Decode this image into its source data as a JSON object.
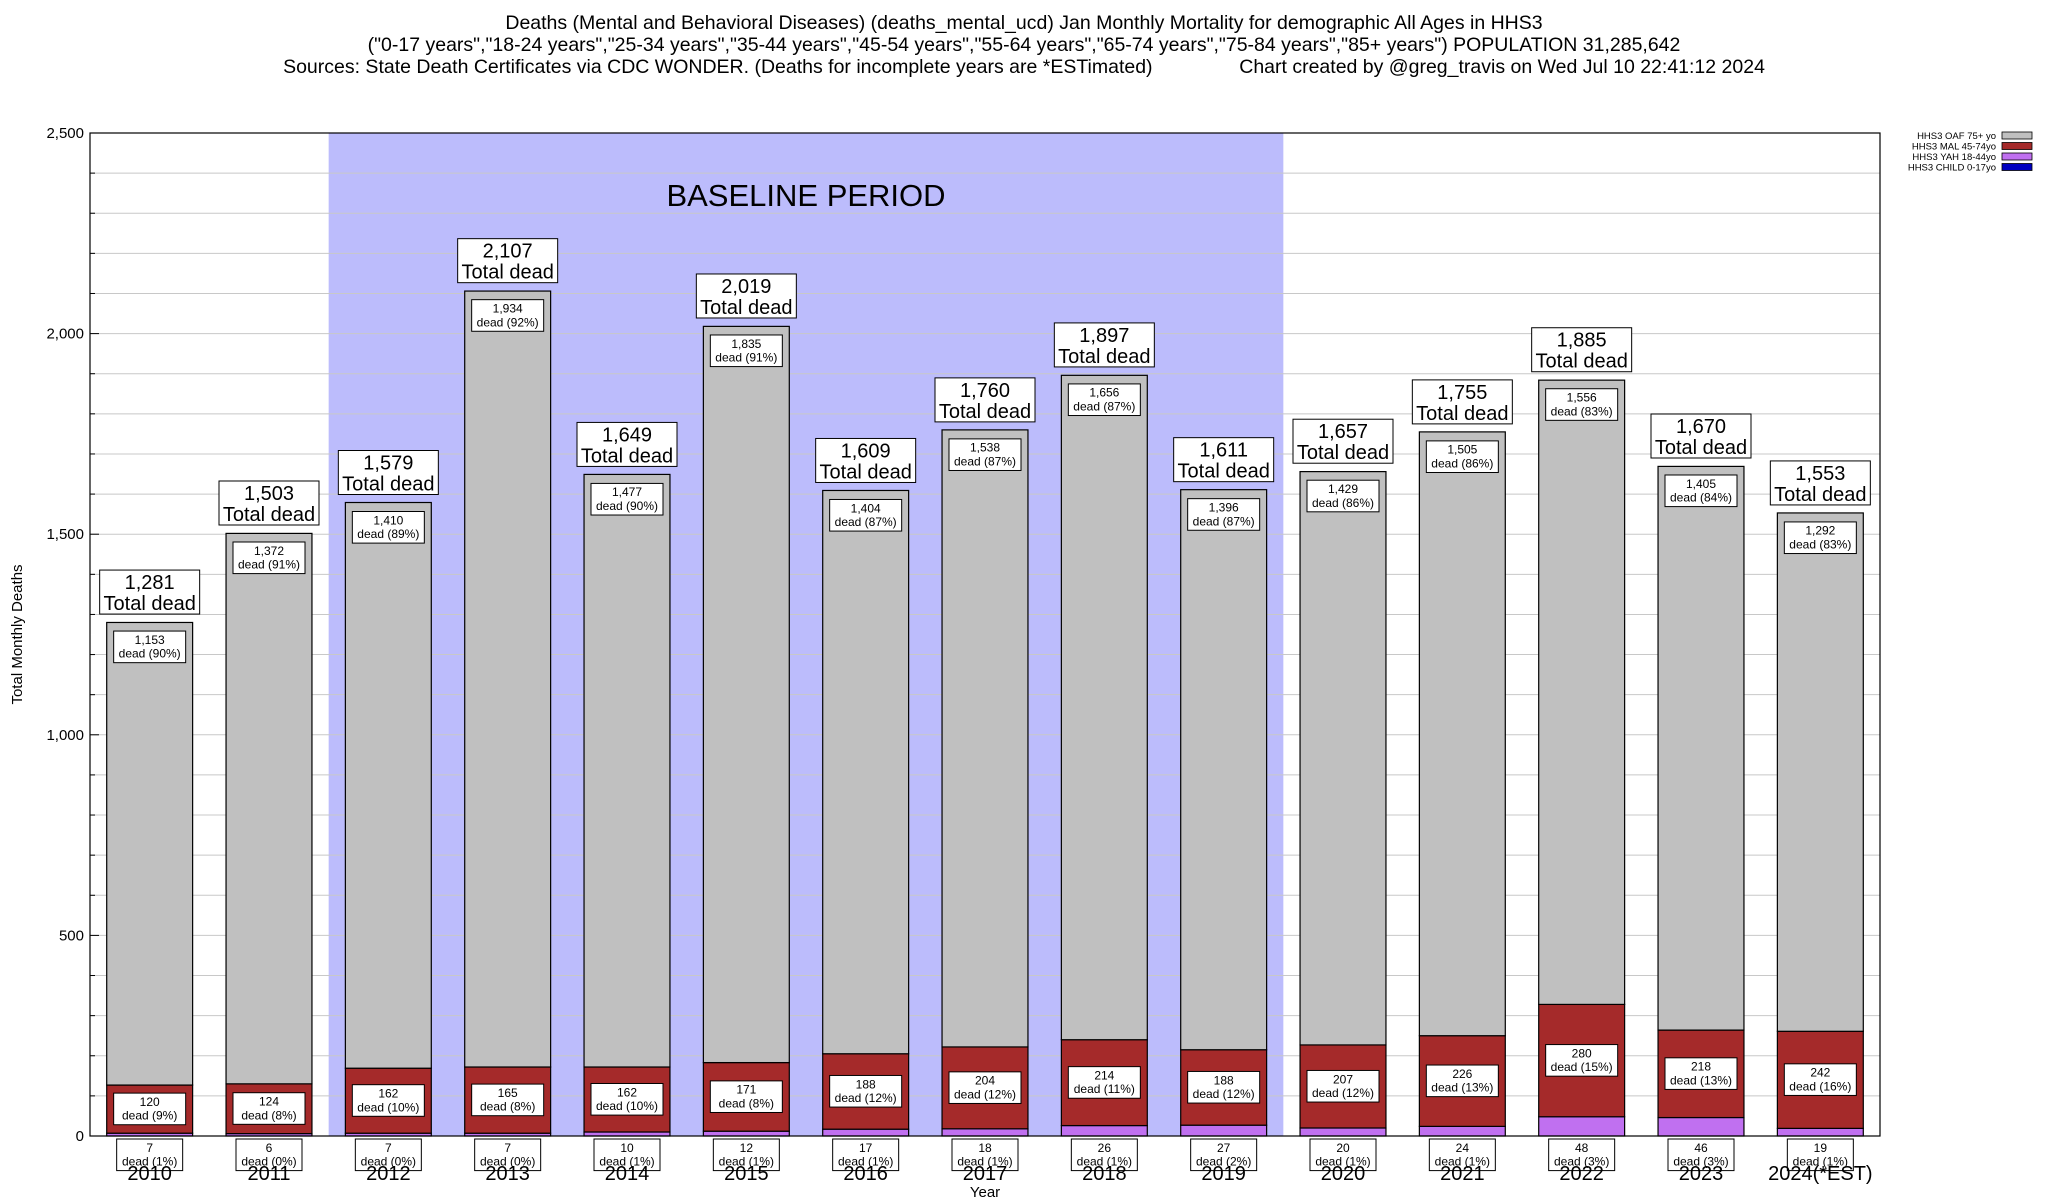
{
  "title_lines": [
    "Deaths (Mental and Behavioral Diseases) (deaths_mental_ucd) Jan Monthly Mortality for demographic All Ages in HHS3",
    "(\"0-17 years\",\"18-24 years\",\"25-34 years\",\"35-44 years\",\"45-54 years\",\"55-64 years\",\"65-74 years\",\"75-84 years\",\"85+ years\") POPULATION 31,285,642",
    "Sources: State Death Certificates via CDC WONDER. (Deaths for incomplete years are *ESTimated)                Chart created by @greg_travis on Wed Jul 10 22:41:12 2024"
  ],
  "chart_data": {
    "type": "bar",
    "stacked": true,
    "categories": [
      "2010",
      "2011",
      "2012",
      "2013",
      "2014",
      "2015",
      "2016",
      "2017",
      "2018",
      "2019",
      "2020",
      "2021",
      "2022",
      "2023",
      "2024(*EST)"
    ],
    "series": [
      {
        "name": "HHS3 CHILD 0-17yo",
        "color": "#0000c0",
        "values": [
          0,
          0,
          0,
          0,
          0,
          0,
          0,
          0,
          0,
          0,
          0,
          0,
          0,
          0,
          0
        ]
      },
      {
        "name": "HHS3 YAH 18-44yo",
        "color": "#c070f0",
        "values": [
          7,
          6,
          7,
          7,
          10,
          12,
          17,
          18,
          26,
          27,
          20,
          24,
          48,
          46,
          19
        ],
        "labels": [
          "7\ndead (1%)",
          "6\ndead (0%)",
          "7\ndead (0%)",
          "7\ndead (0%)",
          "10\ndead (1%)",
          "12\ndead (1%)",
          "17\ndead (1%)",
          "18\ndead (1%)",
          "26\ndead (1%)",
          "27\ndead (2%)",
          "20\ndead (1%)",
          "24\ndead (1%)",
          "48\ndead (3%)",
          "46\ndead (3%)",
          "19\ndead (1%)"
        ]
      },
      {
        "name": "HHS3 MAL 45-74yo",
        "color": "#a52a2a",
        "values": [
          120,
          124,
          162,
          165,
          162,
          171,
          188,
          204,
          214,
          188,
          207,
          226,
          280,
          218,
          242
        ],
        "labels": [
          "120\ndead (9%)",
          "124\ndead (8%)",
          "162\ndead (10%)",
          "165\ndead (8%)",
          "162\ndead (10%)",
          "171\ndead (8%)",
          "188\ndead (12%)",
          "204\ndead (12%)",
          "214\ndead (11%)",
          "188\ndead (12%)",
          "207\ndead (12%)",
          "226\ndead (13%)",
          "280\ndead (15%)",
          "218\ndead (13%)",
          "242\ndead (16%)"
        ]
      },
      {
        "name": "HHS3 OAF 75+ yo",
        "color": "#c0c0c0",
        "values": [
          1153,
          1372,
          1410,
          1934,
          1477,
          1835,
          1404,
          1538,
          1656,
          1396,
          1429,
          1505,
          1556,
          1405,
          1292
        ],
        "labels": [
          "1,153\ndead (90%)",
          "1,372\ndead (91%)",
          "1,410\ndead (89%)",
          "1,934\ndead (92%)",
          "1,477\ndead (90%)",
          "1,835\ndead (91%)",
          "1,404\ndead (87%)",
          "1,538\ndead (87%)",
          "1,656\ndead (87%)",
          "1,396\ndead (87%)",
          "1,429\ndead (86%)",
          "1,505\ndead (86%)",
          "1,556\ndead (83%)",
          "1,405\ndead (84%)",
          "1,292\ndead (83%)"
        ]
      }
    ],
    "totals": [
      1281,
      1503,
      1579,
      2107,
      1649,
      2019,
      1609,
      1760,
      1897,
      1611,
      1657,
      1755,
      1885,
      1670,
      1553
    ],
    "total_labels": [
      "1,281",
      "1,503",
      "1,579",
      "2,107",
      "1,649",
      "2,019",
      "1,609",
      "1,760",
      "1,897",
      "1,611",
      "1,657",
      "1,755",
      "1,885",
      "1,670",
      "1,553"
    ],
    "total_suffix": "Total dead",
    "xlabel": "Year",
    "ylabel": "Total Monthly Deaths",
    "ylim": [
      0,
      2500
    ],
    "yticks": [
      0,
      500,
      1000,
      1500,
      2000,
      2500
    ],
    "ytick_labels": [
      "0",
      "500",
      "1,000",
      "1,500",
      "2,000",
      "2,500"
    ],
    "minor_tick_step": 100,
    "grid": true,
    "legend_placement": "top-right",
    "legend_order": [
      "HHS3 OAF 75+ yo",
      "HHS3 MAL 45-74yo",
      "HHS3 YAH 18-44yo",
      "HHS3 CHILD 0-17yo"
    ],
    "baseline_period": {
      "label": "BASELINE PERIOD",
      "from_category": "2012",
      "to_category": "2019",
      "color": "#bcbcfc"
    }
  }
}
